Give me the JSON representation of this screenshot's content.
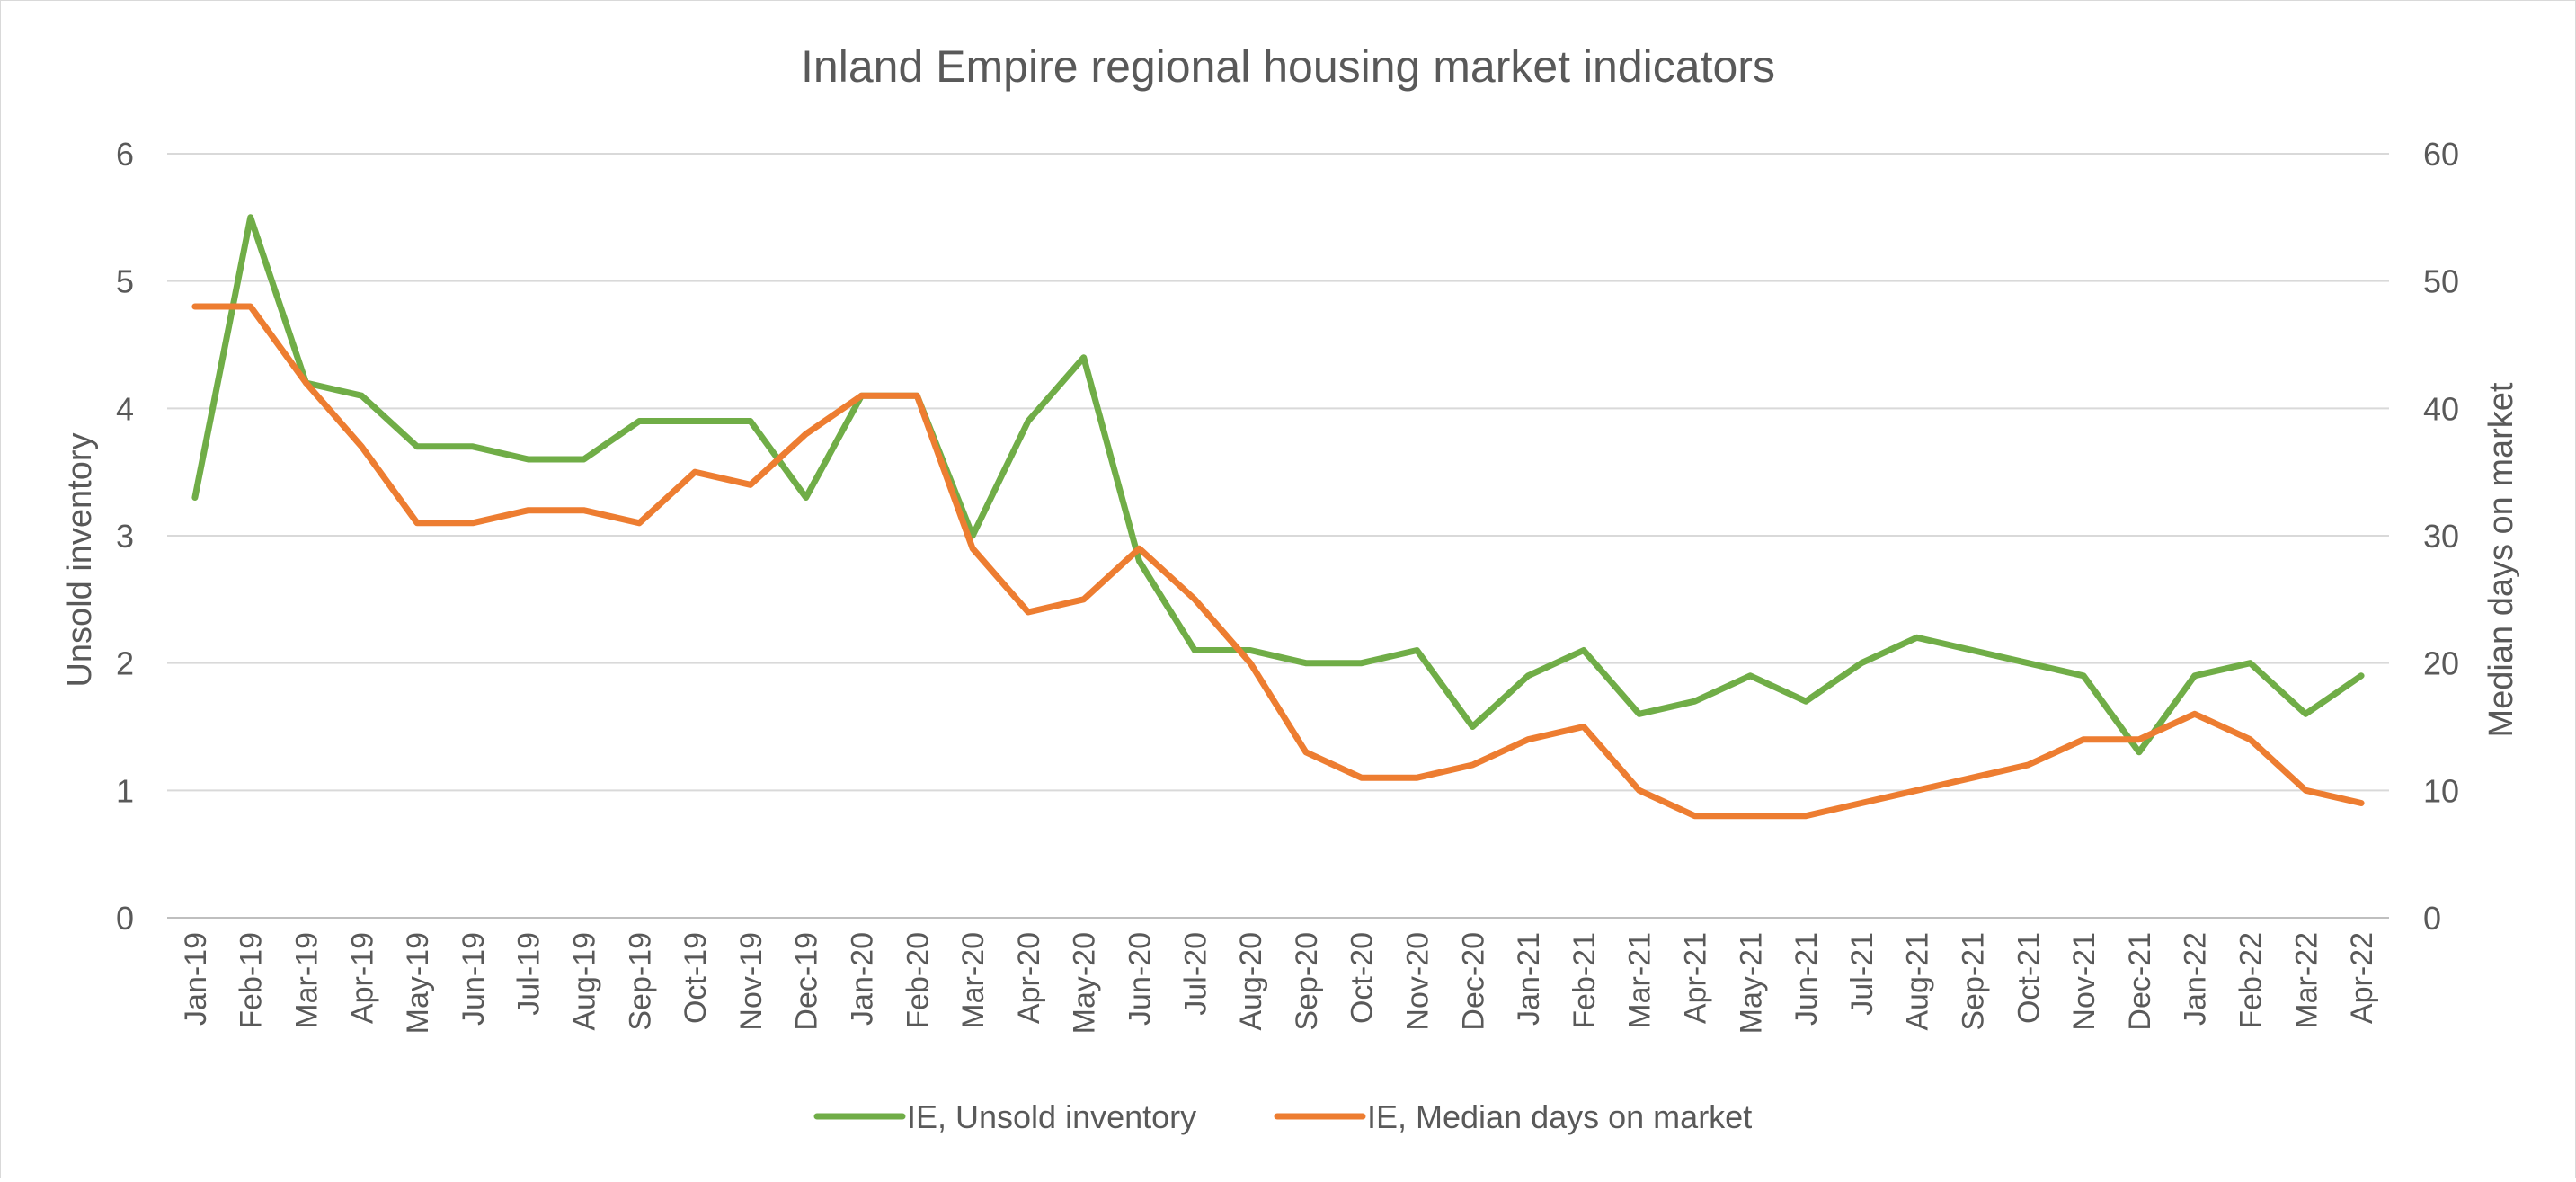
{
  "chart_data": {
    "type": "line",
    "title": "Inland Empire regional housing market indicators",
    "ylabel": "Unsold inventory",
    "y2label": "Median days on market",
    "ylim": [
      0,
      6
    ],
    "yticks": [
      "0",
      "1",
      "2",
      "3",
      "4",
      "5",
      "6"
    ],
    "y2lim": [
      0,
      60
    ],
    "y2ticks": [
      "0",
      "10",
      "20",
      "30",
      "40",
      "50",
      "60"
    ],
    "grid": true,
    "legend_position": "bottom",
    "categories": [
      "Jan-19",
      "Feb-19",
      "Mar-19",
      "Apr-19",
      "May-19",
      "Jun-19",
      "Jul-19",
      "Aug-19",
      "Sep-19",
      "Oct-19",
      "Nov-19",
      "Dec-19",
      "Jan-20",
      "Feb-20",
      "Mar-20",
      "Apr-20",
      "May-20",
      "Jun-20",
      "Jul-20",
      "Aug-20",
      "Sep-20",
      "Oct-20",
      "Nov-20",
      "Dec-20",
      "Jan-21",
      "Feb-21",
      "Mar-21",
      "Apr-21",
      "May-21",
      "Jun-21",
      "Jul-21",
      "Aug-21",
      "Sep-21",
      "Oct-21",
      "Nov-21",
      "Dec-21",
      "Jan-22",
      "Feb-22",
      "Mar-22",
      "Apr-22"
    ],
    "series": [
      {
        "name": "IE, Unsold inventory",
        "axis": "left",
        "color": "#70ad47",
        "values": [
          3.3,
          5.5,
          4.2,
          4.1,
          3.7,
          3.7,
          3.6,
          3.6,
          3.9,
          3.9,
          3.9,
          3.3,
          4.1,
          4.1,
          3.0,
          3.9,
          4.4,
          2.8,
          2.1,
          2.1,
          2.0,
          2.0,
          2.1,
          1.5,
          1.9,
          2.1,
          1.6,
          1.7,
          1.9,
          1.7,
          2.0,
          2.2,
          2.1,
          2.0,
          1.9,
          1.3,
          1.9,
          2.0,
          1.6,
          1.9
        ]
      },
      {
        "name": "IE, Median days on market",
        "axis": "right",
        "color": "#ed7d31",
        "values": [
          48,
          48,
          42,
          37,
          31,
          31,
          32,
          32,
          31,
          35,
          34,
          38,
          41,
          41,
          29,
          24,
          25,
          29,
          25,
          20,
          13,
          11,
          11,
          12,
          14,
          15,
          10,
          8,
          8,
          8,
          9,
          10,
          11,
          12,
          14,
          14,
          16,
          14,
          10,
          9
        ]
      }
    ]
  }
}
